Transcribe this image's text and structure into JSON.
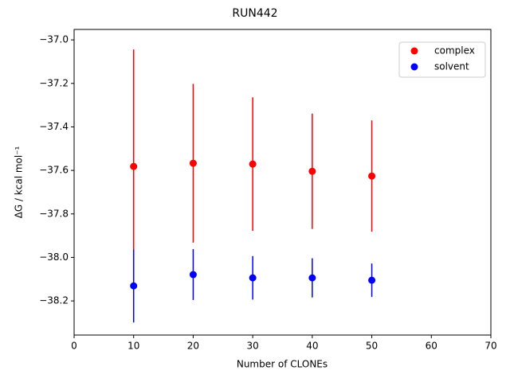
{
  "chart_data": {
    "type": "errorbar-scatter",
    "title": "RUN442",
    "xlabel": "Number of CLONEs",
    "ylabel": "ΔG / kcal mol⁻¹",
    "xlim": [
      0,
      70
    ],
    "xticks": [
      0,
      10,
      20,
      30,
      40,
      50,
      60,
      70
    ],
    "ylim": [
      -38.357,
      -36.952
    ],
    "yticks": [
      {
        "value": -38.2,
        "label": "−38.2"
      },
      {
        "value": -38.0,
        "label": "−38.0"
      },
      {
        "value": -37.8,
        "label": "−37.8"
      },
      {
        "value": -37.6,
        "label": "−37.6"
      },
      {
        "value": -37.4,
        "label": "−37.4"
      },
      {
        "value": -37.2,
        "label": "−37.2"
      },
      {
        "value": -37.0,
        "label": "−37.0"
      }
    ],
    "legend": "upper right",
    "series": [
      {
        "name": "complex",
        "color": "#ff0000",
        "x": [
          10,
          20,
          30,
          40,
          50
        ],
        "values": [
          -37.582,
          -37.567,
          -37.571,
          -37.604,
          -37.626
        ],
        "errors": [
          0.538,
          0.365,
          0.307,
          0.265,
          0.256
        ]
      },
      {
        "name": "solvent",
        "color": "#0000ff",
        "x": [
          10,
          20,
          30,
          40,
          50
        ],
        "values": [
          -38.131,
          -38.079,
          -38.094,
          -38.094,
          -38.105
        ],
        "errors": [
          0.168,
          0.117,
          0.1,
          0.09,
          0.077
        ]
      }
    ]
  }
}
